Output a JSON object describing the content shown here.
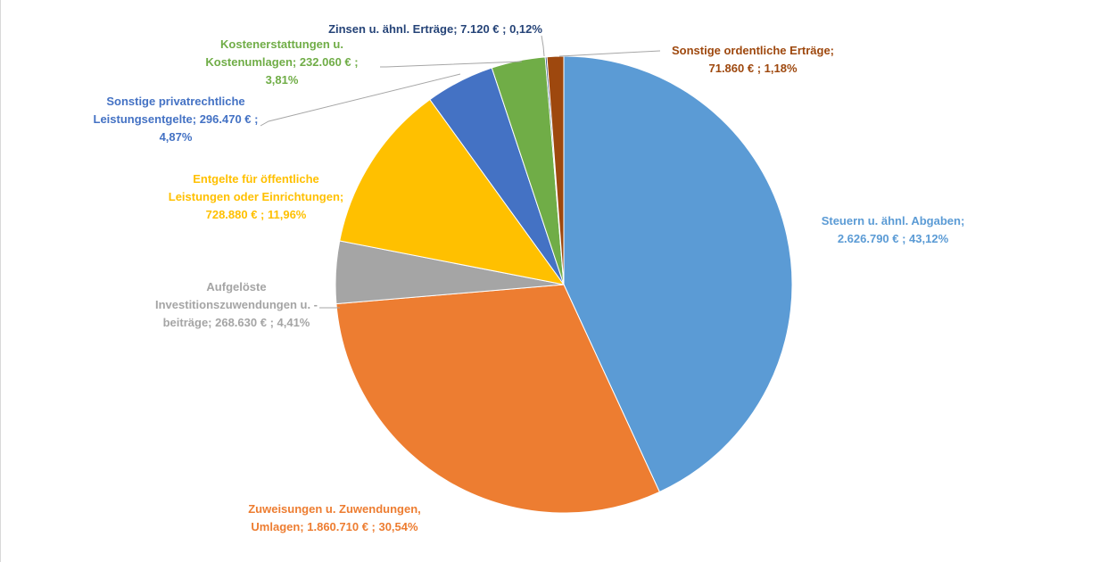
{
  "chart_data": {
    "type": "pie",
    "title": "",
    "slices": [
      {
        "category": "Steuern u. ähnl. Abgaben",
        "value": 2626790,
        "percent": 43.12,
        "label_lines": [
          "Steuern u. ähnl. Abgaben;",
          "2.626.790 € ; 43,12%"
        ],
        "color": "#5b9bd5"
      },
      {
        "category": "Zuweisungen u. Zuwendungen, Umlagen",
        "value": 1860710,
        "percent": 30.54,
        "label_lines": [
          "Zuweisungen u. Zuwendungen,",
          "Umlagen;  1.860.710 € ; 30,54%"
        ],
        "color": "#ed7d31"
      },
      {
        "category": "Aufgelöste Investitionszuwendungen u. -beiträge",
        "value": 268630,
        "percent": 4.41,
        "label_lines": [
          "Aufgelöste",
          "Investitionszuwendungen u. -",
          "beiträge;  268.630 € ; 4,41%"
        ],
        "color": "#a5a5a5"
      },
      {
        "category": "Entgelte für öffentliche Leistungen oder Einrichtungen",
        "value": 728880,
        "percent": 11.96,
        "label_lines": [
          "Entgelte für öffentliche",
          "Leistungen oder Einrichtungen;",
          "728.880 € ; 11,96%"
        ],
        "color": "#ffc000"
      },
      {
        "category": "Sonstige privatrechtliche Leistungsentgelte",
        "value": 296470,
        "percent": 4.87,
        "label_lines": [
          "Sonstige privatrechtliche",
          "Leistungsentgelte;  296.470 € ;",
          "4,87%"
        ],
        "color": "#4472c4"
      },
      {
        "category": "Kostenerstattungen u. Kostenumlagen",
        "value": 232060,
        "percent": 3.81,
        "label_lines": [
          "Kostenerstattungen u.",
          "Kostenumlagen;  232.060 € ;",
          "3,81%"
        ],
        "color": "#70ad47"
      },
      {
        "category": "Zinsen u. ähnl. Erträge",
        "value": 7120,
        "percent": 0.12,
        "label_lines": [
          "Zinsen u. ähnl. Erträge;  7.120 € ; 0,12%"
        ],
        "color": "#264478"
      },
      {
        "category": "Sonstige ordentliche Erträge",
        "value": 71860,
        "percent": 1.18,
        "label_lines": [
          "Sonstige ordentliche Erträge;",
          "71.860 € ; 1,18%"
        ],
        "color": "#9e480e"
      }
    ]
  }
}
